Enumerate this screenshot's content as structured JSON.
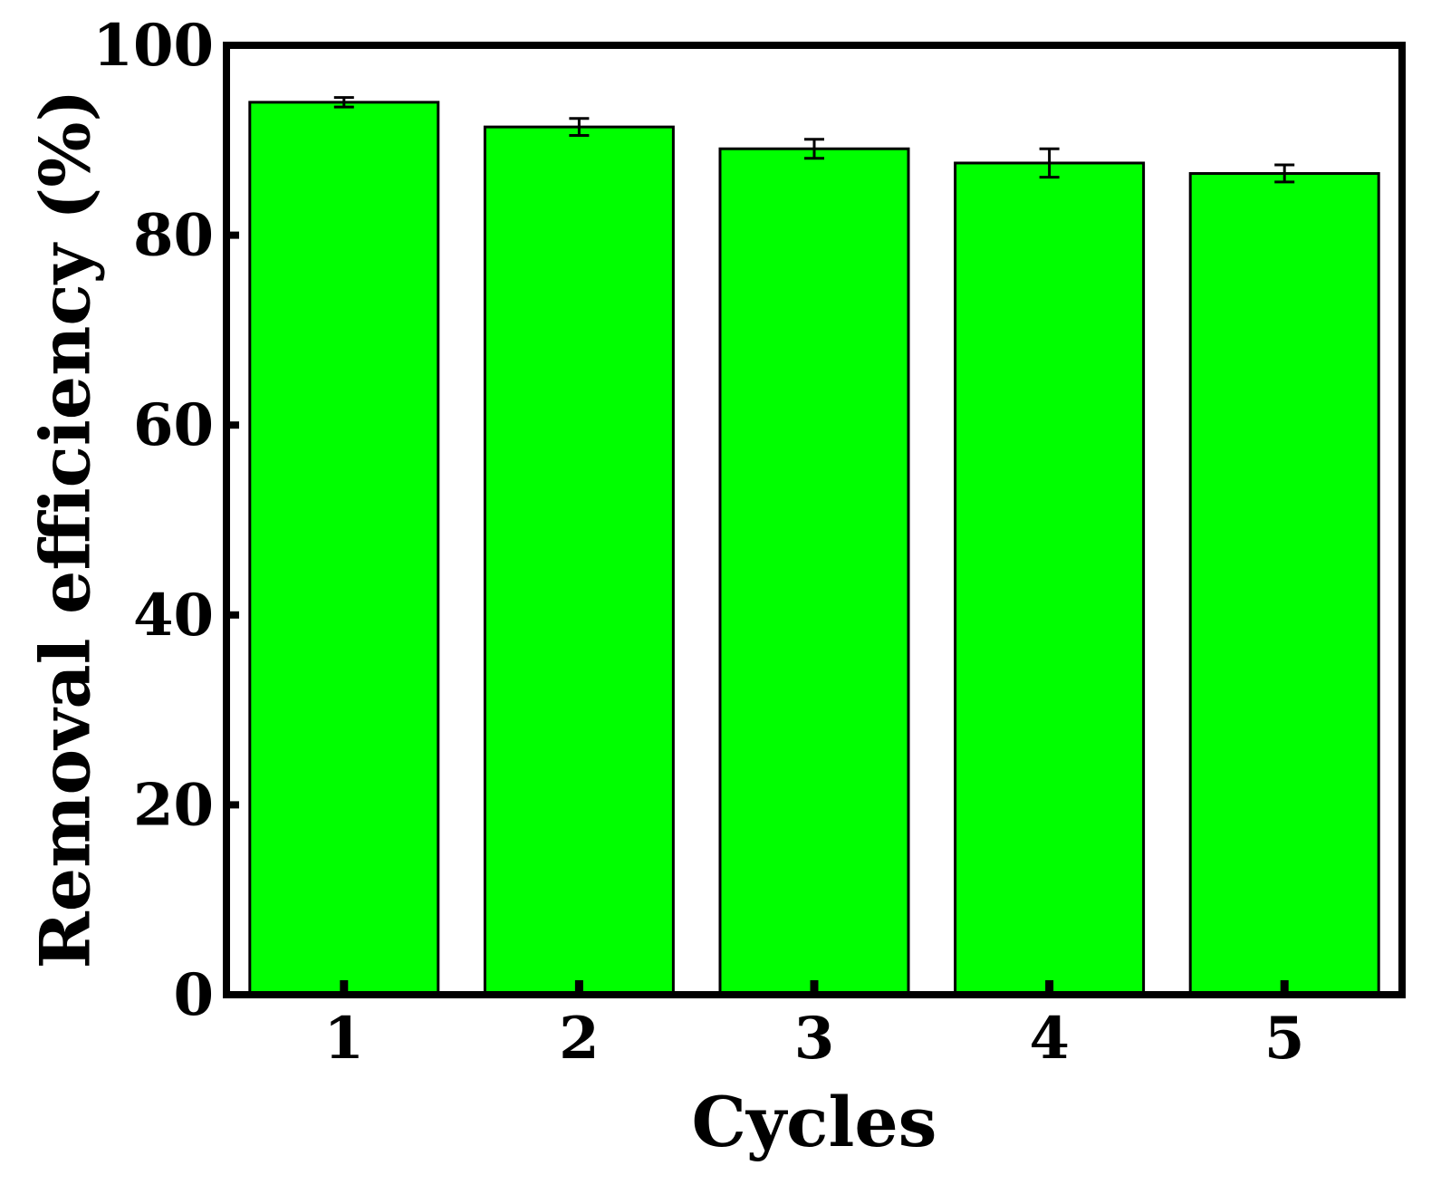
{
  "colors": {
    "bar_fill": "#00ff00",
    "bar_stroke": "#000000",
    "axis": "#000000",
    "background": "#ffffff"
  },
  "chart_data": {
    "type": "bar",
    "title": "",
    "xlabel": "Cycles",
    "ylabel": "Removal efficiency (%)",
    "categories": [
      "1",
      "2",
      "3",
      "4",
      "5"
    ],
    "values": [
      94.0,
      91.4,
      89.1,
      87.6,
      86.5
    ],
    "errors": [
      0.5,
      0.9,
      1.0,
      1.5,
      0.9
    ],
    "ylim": [
      0,
      100
    ],
    "yticks": [
      0,
      20,
      40,
      60,
      80,
      100
    ],
    "grid": false,
    "legend": "none"
  }
}
